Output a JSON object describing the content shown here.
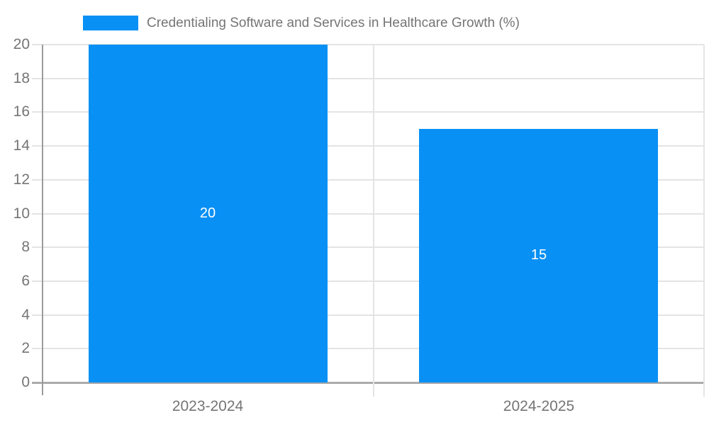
{
  "chart_data": {
    "type": "bar",
    "title": "Credentialing Software and Services in Healthcare Growth (%)",
    "categories": [
      "2023-2024",
      "2024-2025"
    ],
    "values": [
      20,
      15
    ],
    "data_labels": [
      "20",
      "15"
    ],
    "xlabel": "",
    "ylabel": "",
    "ylim": [
      0,
      20
    ],
    "yticks": [
      0,
      2,
      4,
      6,
      8,
      10,
      12,
      14,
      16,
      18,
      20
    ],
    "grid": true,
    "legend_position": "top-left",
    "colors": {
      "bar": "#0890f5",
      "grid": "#e4e4e4",
      "baseline": "#ababab",
      "axis": "#9b9b9b",
      "text": "#757575",
      "bar_label": "#ffffff",
      "background": "#ffffff"
    }
  },
  "legend": {
    "label": "Credentialing Software and Services in Healthcare Growth (%)"
  }
}
